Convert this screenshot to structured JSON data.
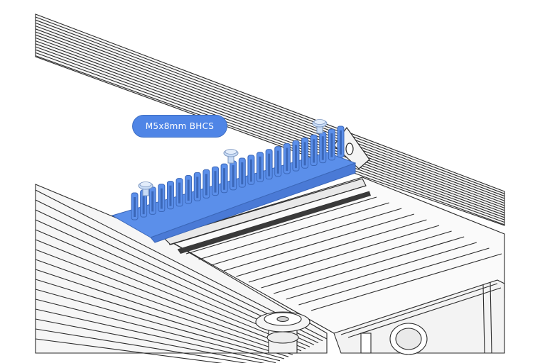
{
  "callout": {
    "label": "M5x8mm BHCS"
  },
  "colors": {
    "part_fill": "#5b8fea",
    "part_edge": "#3b67b8",
    "callout_fill": "#4f85e6",
    "screw_fill": "#c9dcf6",
    "line": "#2b2b2b",
    "background": "#ffffff"
  },
  "parts": [
    {
      "name": "cable-comb-clip",
      "color": "part_fill"
    },
    {
      "name": "m5-button-head-screw",
      "count": 3,
      "color": "screw_fill"
    },
    {
      "name": "aluminum-extrusion-frame"
    },
    {
      "name": "corner-bracket"
    },
    {
      "name": "thumb-nut"
    }
  ]
}
